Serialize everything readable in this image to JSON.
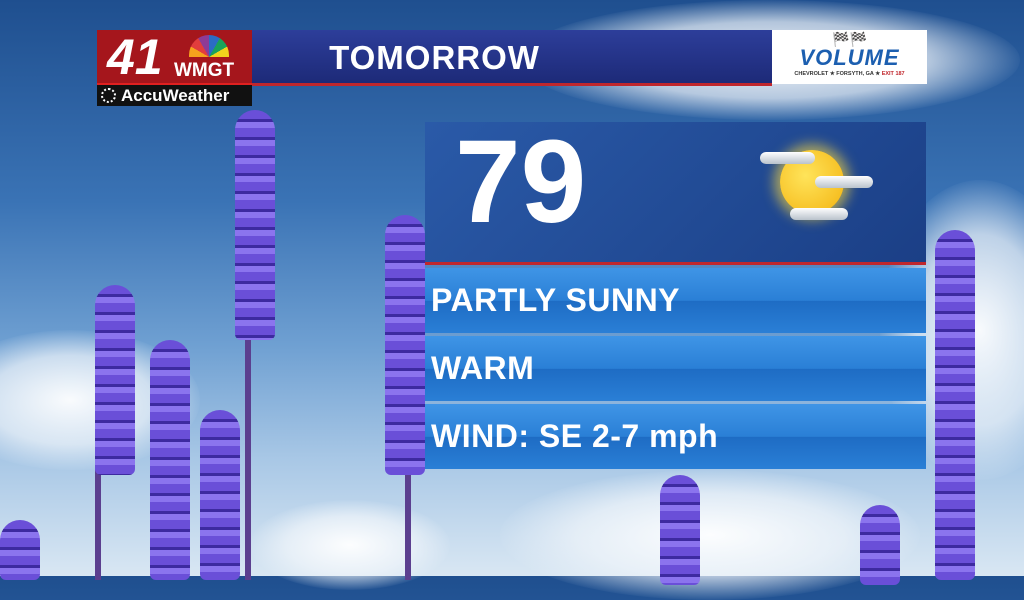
{
  "header": {
    "title": "TOMORROW"
  },
  "station_logo": {
    "channel": "41",
    "call_sign": "WMGT",
    "partner": "AccuWeather"
  },
  "sponsor": {
    "name": "VOLUME",
    "line1": "CHEVROLET",
    "line2": "FORSYTH, GA",
    "line3": "EXIT 187"
  },
  "forecast": {
    "temperature": "79",
    "icon": "partly-sunny-icon",
    "conditions": [
      "PARTLY SUNNY",
      "WARM",
      "WIND: SE 2-7 mph"
    ]
  },
  "colors": {
    "accent_red": "#c0272d",
    "panel_blue": "#2a7fd6",
    "header_blue": "#2d3e9a"
  }
}
